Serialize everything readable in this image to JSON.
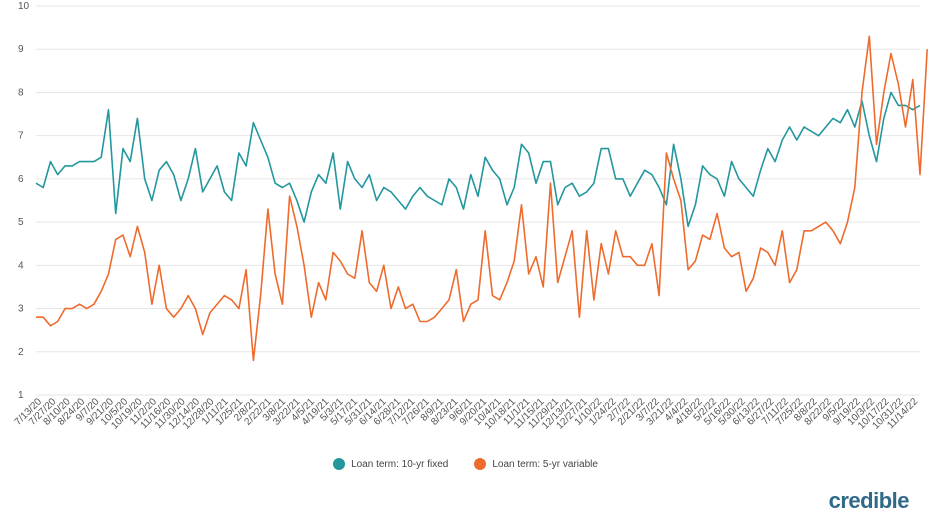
{
  "logo_text": "credible",
  "colors": {
    "series_1": "#23979e",
    "series_2": "#ef6b2d",
    "grid": "#e6e6e6"
  },
  "chart_data": {
    "type": "line",
    "title": "",
    "xlabel": "",
    "ylabel": "",
    "ylim": [
      1,
      10
    ],
    "yticks": [
      1,
      2,
      3,
      4,
      5,
      6,
      7,
      8,
      9,
      10
    ],
    "grid": "horizontal",
    "legend_position": "bottom-center",
    "x_tick_labels": [
      "7/13/20",
      "7/27/20",
      "8/10/20",
      "8/24/20",
      "9/7/20",
      "9/21/20",
      "10/5/20",
      "10/19/20",
      "11/2/20",
      "11/16/20",
      "11/30/20",
      "12/14/20",
      "12/28/20",
      "1/11/21",
      "1/25/21",
      "2/8/21",
      "2/22/21",
      "3/8/21",
      "3/22/21",
      "4/5/21",
      "4/19/21",
      "5/3/21",
      "5/17/21",
      "5/31/21",
      "6/14/21",
      "6/28/21",
      "7/12/21",
      "7/26/21",
      "8/9/21",
      "8/23/21",
      "9/6/21",
      "9/20/21",
      "10/4/21",
      "10/18/21",
      "11/1/21",
      "11/15/21",
      "11/29/21",
      "12/13/21",
      "12/27/21",
      "1/10/22",
      "1/24/22",
      "2/7/22",
      "2/21/22",
      "3/7/22",
      "3/21/22",
      "4/4/22",
      "4/18/22",
      "5/2/22",
      "5/16/22",
      "5/30/22",
      "6/13/22",
      "6/27/22",
      "7/11/22",
      "7/25/22",
      "8/8/22",
      "8/22/22",
      "9/5/22",
      "9/19/22",
      "10/3/22",
      "10/17/22",
      "10/31/22",
      "11/14/22"
    ],
    "series": [
      {
        "name": "Loan term: 10-yr fixed",
        "values": [
          5.9,
          5.8,
          6.4,
          6.1,
          6.3,
          6.3,
          6.4,
          6.4,
          6.4,
          6.5,
          7.6,
          5.2,
          6.7,
          6.4,
          7.4,
          6.0,
          5.5,
          6.2,
          6.4,
          6.1,
          5.5,
          6.0,
          6.7,
          5.7,
          6.0,
          6.3,
          5.7,
          5.5,
          6.6,
          6.3,
          7.3,
          6.9,
          6.5,
          5.9,
          5.8,
          5.9,
          5.5,
          5.0,
          5.7,
          6.1,
          5.9,
          6.6,
          5.3,
          6.4,
          6.0,
          5.8,
          6.1,
          5.5,
          5.8,
          5.7,
          5.5,
          5.3,
          5.6,
          5.8,
          5.6,
          5.5,
          5.4,
          6.0,
          5.8,
          5.3,
          6.1,
          5.6,
          6.5,
          6.2,
          6.0,
          5.4,
          5.8,
          6.8,
          6.6,
          5.9,
          6.4,
          6.4,
          5.4,
          5.8,
          5.9,
          5.6,
          5.7,
          5.9,
          6.7,
          6.7,
          6.0,
          6.0,
          5.6,
          5.9,
          6.2,
          6.1,
          5.8,
          5.4,
          6.8,
          6.0,
          4.9,
          5.4,
          6.3,
          6.1,
          6.0,
          5.6,
          6.4,
          6.0,
          5.8,
          5.6,
          6.2,
          6.7,
          6.4,
          6.9,
          7.2,
          6.9,
          7.2,
          7.1,
          7.0,
          7.2,
          7.4,
          7.3,
          7.6,
          7.2,
          7.8,
          7.0,
          6.4,
          7.4,
          8.0,
          7.7,
          7.7,
          7.6,
          7.7
        ]
      },
      {
        "name": "Loan term: 5-yr variable",
        "values": [
          2.8,
          2.8,
          2.6,
          2.7,
          3.0,
          3.0,
          3.1,
          3.0,
          3.1,
          3.4,
          3.8,
          4.6,
          4.7,
          4.2,
          4.9,
          4.3,
          3.1,
          4.0,
          3.0,
          2.8,
          3.0,
          3.3,
          3.0,
          2.4,
          2.9,
          3.1,
          3.3,
          3.2,
          3.0,
          3.9,
          1.8,
          3.3,
          5.3,
          3.8,
          3.1,
          5.6,
          4.9,
          4.0,
          2.8,
          3.6,
          3.2,
          4.3,
          4.1,
          3.8,
          3.7,
          4.8,
          3.6,
          3.4,
          4.0,
          3.0,
          3.5,
          3.0,
          3.1,
          2.7,
          2.7,
          2.8,
          3.0,
          3.2,
          3.9,
          2.7,
          3.1,
          3.2,
          4.8,
          3.3,
          3.2,
          3.6,
          4.1,
          5.4,
          3.8,
          4.2,
          3.5,
          5.9,
          3.6,
          4.2,
          4.8,
          2.8,
          4.8,
          3.2,
          4.5,
          3.8,
          4.8,
          4.2,
          4.2,
          4.0,
          4.0,
          4.5,
          3.3,
          6.6,
          6.0,
          5.5,
          3.9,
          4.1,
          4.7,
          4.6,
          5.2,
          4.4,
          4.2,
          4.3,
          3.4,
          3.7,
          4.4,
          4.3,
          4.0,
          4.8,
          3.6,
          3.9,
          4.8,
          4.8,
          4.9,
          5.0,
          4.8,
          4.5,
          5.0,
          5.8,
          8.0,
          9.3,
          6.8,
          8.0,
          8.9,
          8.2,
          7.2,
          8.3,
          6.1,
          9.0
        ]
      }
    ]
  }
}
